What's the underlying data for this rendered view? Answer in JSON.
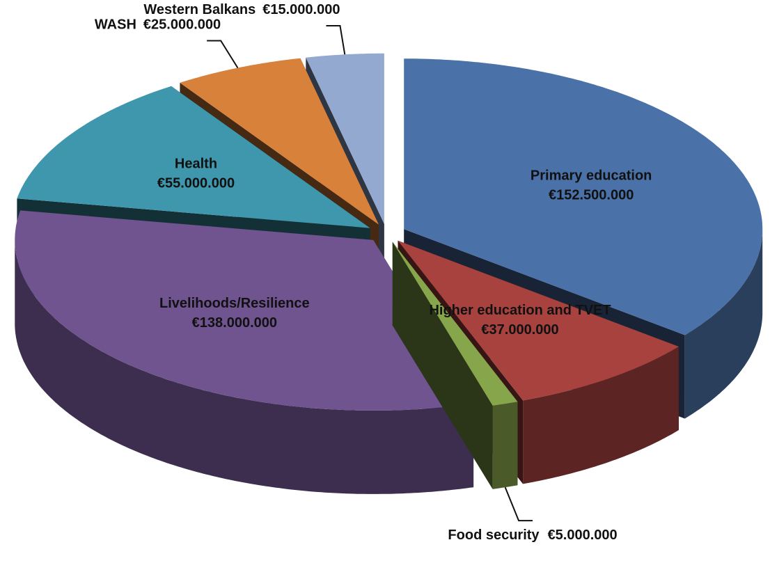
{
  "chart_data": {
    "type": "pie3d",
    "categories": [
      "Primary education",
      "Higher education and TVET",
      "Food security",
      "Livelihoods/Resilience",
      "Health",
      "WASH",
      "Western Balkans"
    ],
    "values": [
      152500000,
      37000000,
      5000000,
      138000000,
      55000000,
      25000000,
      15000000
    ],
    "value_labels": [
      "€152.500.000",
      "€37.000.000",
      "€5.000.000",
      "€138.000.000",
      "€55.000.000",
      "€25.000.000",
      "€15.000.000"
    ],
    "colors": [
      "#4a72a8",
      "#a8423f",
      "#87a54a",
      "#6f5490",
      "#3f97ad",
      "#d8813a",
      "#93a9d0"
    ]
  }
}
